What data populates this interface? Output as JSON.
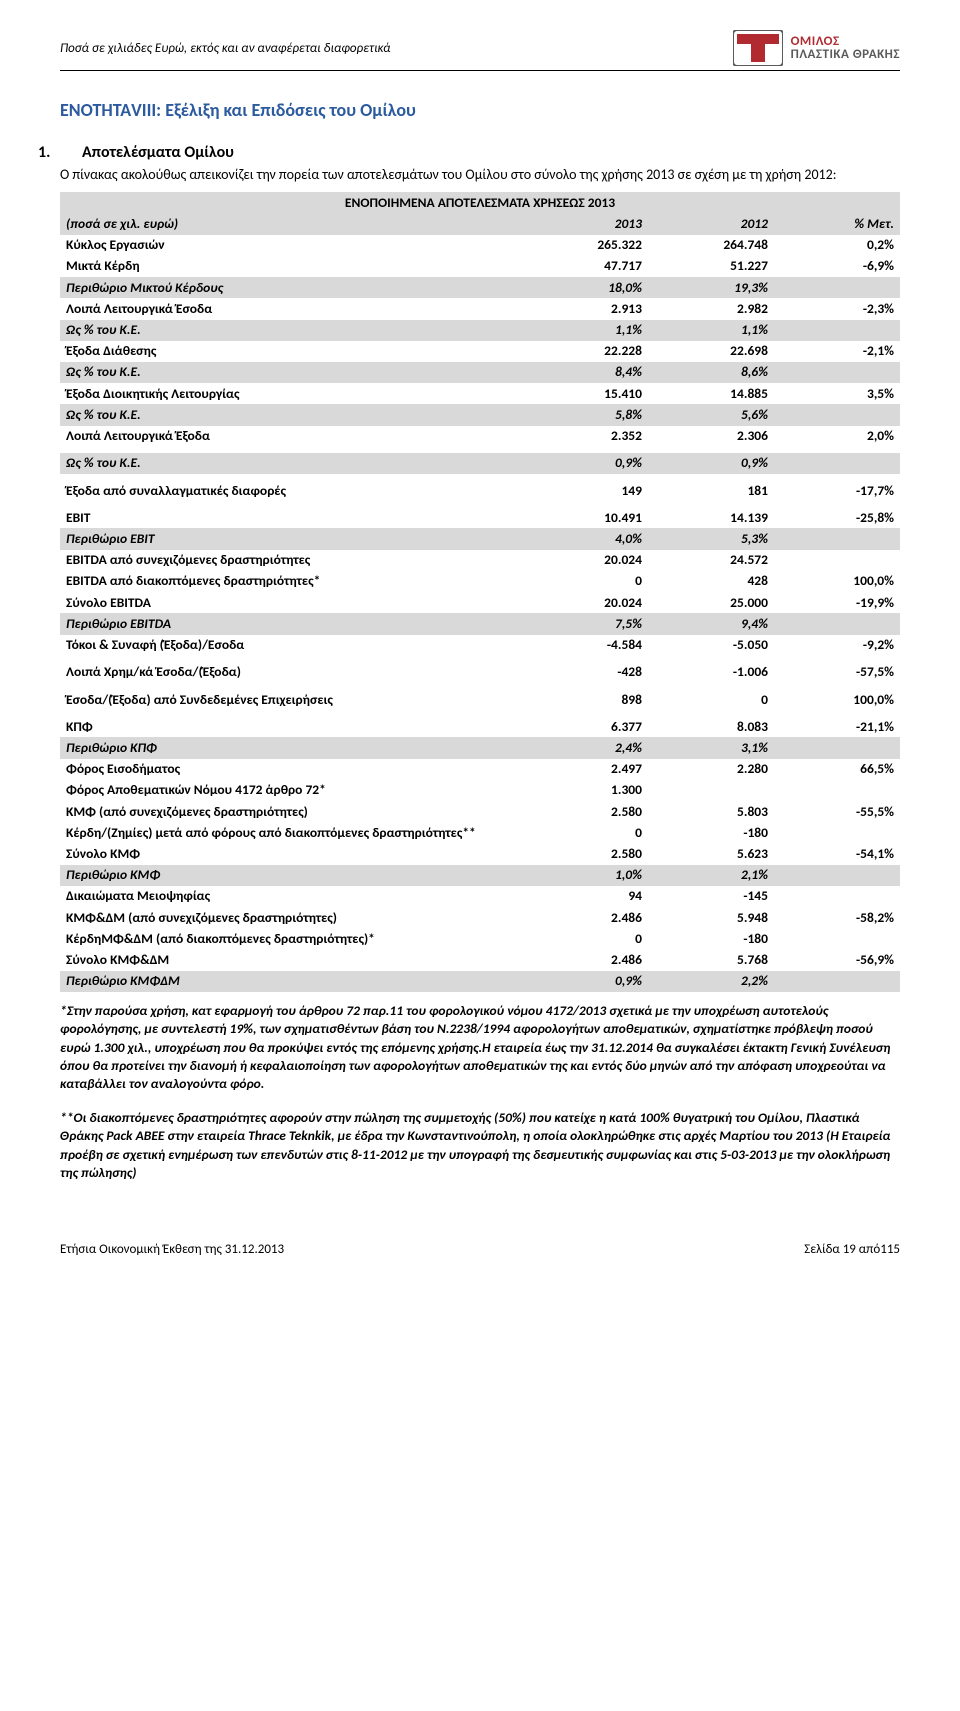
{
  "header": {
    "note": "Ποσά σε χιλιάδες Ευρώ, εκτός και αν αναφέρεται διαφορετικά",
    "logo_line1": "ΟΜΙΛΟΣ",
    "logo_line2": "ΠΛΑΣΤΙΚΑ ΘΡΑΚΗΣ"
  },
  "section_title": "ΕΝΟΤΗΤΑVIII: Εξέλιξη και Επιδόσεις του Ομίλου",
  "sub_num": "1.",
  "sub_title": "Αποτελέσματα Ομίλου",
  "intro": "Ο πίνακας ακολούθως απεικονίζει την πορεία των αποτελεσμάτων του Ομίλου στο σύνολο της χρήσης 2013 σε σχέση με τη χρήση 2012:",
  "table": {
    "title": "ΕΝΟΠΟΙΗΜΕΝΑ ΑΠΟΤΕΛΕΣΜΑΤΑ ΧΡΗΣΕΩΣ 2013",
    "head": {
      "label": "(ποσά σε χιλ. ευρώ)",
      "c1": "2013",
      "c2": "2012",
      "c3": "% Μετ."
    },
    "rows": [
      {
        "label": "Κύκλος Εργασιών",
        "c1": "265.322",
        "c2": "264.748",
        "c3": "0,2%",
        "variant": "bold"
      },
      {
        "label": "Μικτά Κέρδη",
        "c1": "47.717",
        "c2": "51.227",
        "c3": "-6,9%",
        "variant": "bold"
      },
      {
        "label": "Περιθώριο Μικτού Κέρδους",
        "c1": "18,0%",
        "c2": "19,3%",
        "c3": "",
        "variant": "band bolditalic"
      },
      {
        "label": "Λοιπά Λειτουργικά Έσοδα",
        "c1": "2.913",
        "c2": "2.982",
        "c3": "-2,3%",
        "variant": "bold"
      },
      {
        "label": "Ως % του Κ.Ε.",
        "c1": "1,1%",
        "c2": "1,1%",
        "c3": "",
        "variant": "band bolditalic"
      },
      {
        "label": "Έξοδα Διάθεσης",
        "c1": "22.228",
        "c2": "22.698",
        "c3": "-2,1%",
        "variant": "bold"
      },
      {
        "label": "Ως % του Κ.Ε.",
        "c1": "8,4%",
        "c2": "8,6%",
        "c3": "",
        "variant": "band bolditalic"
      },
      {
        "label": "Έξοδα Διοικητικής Λειτουργίας",
        "c1": "15.410",
        "c2": "14.885",
        "c3": "3,5%",
        "variant": "bold"
      },
      {
        "label": "Ως % του Κ.Ε.",
        "c1": "5,8%",
        "c2": "5,6%",
        "c3": "",
        "variant": "band bolditalic"
      },
      {
        "label": "Λοιπά Λειτουργικά Έξοδα",
        "c1": "2.352",
        "c2": "2.306",
        "c3": "2,0%",
        "variant": "bold"
      },
      {
        "variant": "spacer"
      },
      {
        "label": "Ως % του Κ.Ε.",
        "c1": "0,9%",
        "c2": "0,9%",
        "c3": "",
        "variant": "band bolditalic"
      },
      {
        "variant": "spacer"
      },
      {
        "label": "Έξοδα από συναλλαγματικές διαφορές",
        "c1": "149",
        "c2": "181",
        "c3": "-17,7%",
        "variant": "bold"
      },
      {
        "variant": "spacer"
      },
      {
        "label": "EBIT",
        "c1": "10.491",
        "c2": "14.139",
        "c3": "-25,8%",
        "variant": "bold"
      },
      {
        "label": "Περιθώριο ΕΒΙΤ",
        "c1": "4,0%",
        "c2": "5,3%",
        "c3": "",
        "variant": "band bolditalic"
      },
      {
        "label": "EBITDA από συνεχιζόμενες δραστηριότητες",
        "c1": "20.024",
        "c2": "24.572",
        "c3": "",
        "variant": "bold"
      },
      {
        "label": "EBITDA από διακοπτόμενες δραστηριότητες*",
        "c1": "0",
        "c2": "428",
        "c3": "100,0%",
        "variant": "bold"
      },
      {
        "label": "Σύνολο EBITDA",
        "c1": "20.024",
        "c2": "25.000",
        "c3": "-19,9%",
        "variant": "bold"
      },
      {
        "label": "Περιθώριο EBITDA",
        "c1": "7,5%",
        "c2": "9,4%",
        "c3": "",
        "variant": "band bolditalic"
      },
      {
        "label": "Τόκοι & Συναφή (Έξοδα)/Εσοδα",
        "c1": "-4.584",
        "c2": "-5.050",
        "c3": "-9,2%",
        "variant": "bold"
      },
      {
        "variant": "spacer"
      },
      {
        "label": "Λοιπά Χρημ/κά Έσοδα/(Έξοδα)",
        "c1": "-428",
        "c2": "-1.006",
        "c3": "-57,5%",
        "variant": "bold"
      },
      {
        "variant": "spacer"
      },
      {
        "label": "Έσοδα/(Έξοδα) από Συνδεδεμένες Επιχειρήσεις",
        "c1": "898",
        "c2": "0",
        "c3": "100,0%",
        "variant": "bold"
      },
      {
        "variant": "spacer"
      },
      {
        "label": "ΚΠΦ",
        "c1": "6.377",
        "c2": "8.083",
        "c3": "-21,1%",
        "variant": "bold"
      },
      {
        "label": "Περιθώριο ΚΠΦ",
        "c1": "2,4%",
        "c2": "3,1%",
        "c3": "",
        "variant": "band bolditalic"
      },
      {
        "label": "Φόρος Εισοδήματος",
        "c1": "2.497",
        "c2": "2.280",
        "c3": "66,5%",
        "variant": "bold"
      },
      {
        "label": "Φόρος Αποθεματικών Νόμου 4172 άρθρο 72*",
        "c1": "1.300",
        "c2": "",
        "c3": "",
        "variant": "bold"
      },
      {
        "label": "ΚΜΦ (από συνεχιζόμενες δραστηριότητες)",
        "c1": "2.580",
        "c2": "5.803",
        "c3": "-55,5%",
        "variant": "bold"
      },
      {
        "label": "Κέρδη/(Ζημίες) μετά από φόρους από διακοπτόμενες δραστηριότητες**",
        "c1": "0",
        "c2": "-180",
        "c3": "",
        "variant": "bold"
      },
      {
        "label": "Σύνολο ΚΜΦ",
        "c1": "2.580",
        "c2": "5.623",
        "c3": "-54,1%",
        "variant": "bold"
      },
      {
        "label": "Περιθώριο ΚΜΦ",
        "c1": "1,0%",
        "c2": "2,1%",
        "c3": "",
        "variant": "band bolditalic"
      },
      {
        "label": "Δικαιώματα Μειοψηφίας",
        "c1": "94",
        "c2": "-145",
        "c3": "",
        "variant": "bold"
      },
      {
        "label": "ΚΜΦ&ΔΜ (από συνεχιζόμενες δραστηριότητες)",
        "c1": "2.486",
        "c2": "5.948",
        "c3": "-58,2%",
        "variant": "bold"
      },
      {
        "label": "ΚέρδηΜΦ&ΔΜ (από διακοπτόμενες δραστηριότητες)*",
        "c1": "0",
        "c2": "-180",
        "c3": "",
        "variant": "bold"
      },
      {
        "label": "Σύνολο ΚΜΦ&ΔΜ",
        "c1": "2.486",
        "c2": "5.768",
        "c3": "-56,9%",
        "variant": "bold"
      },
      {
        "label": "Περιθώριο ΚΜΦΔΜ",
        "c1": "0,9%",
        "c2": "2,2%",
        "c3": "",
        "variant": "band bolditalic"
      }
    ]
  },
  "note1": "*Στην παρούσα χρήση, κατ εφαρμογή του άρθρου 72 παρ.11 του φορολογικού νόμου 4172/2013 σχετικά με την υποχρέωση αυτοτελούς φορολόγησης, με συντελεστή 19%, των σχηματισθέντων βάση του Ν.2238/1994 αφορολογήτων αποθεματικών, σχηματίστηκε πρόβλεψη ποσού ευρώ 1.300 χιλ., υποχρέωση που θα προκύψει εντός της επόμενης χρήσης.Η εταιρεία έως την 31.12.2014 θα συγκαλέσει έκτακτη Γενική Συνέλευση όπου θα προτείνει την διανομή ή κεφαλαιοποίηση των αφορολογήτων αποθεματικών της και εντός δύο μηνών από την απόφαση υποχρεούται  να καταβάλλει τον αναλογούντα φόρο.",
  "note2": "**Οι διακοπτόμενες δραστηριότητες αφορούν στην πώληση της συμμετοχής (50%) που κατείχε η κατά 100% θυγατρική του Ομίλου, Πλαστικά Θράκης Pack ΑΒΕΕ  στην εταιρεία Thrace Teknkik, με έδρα την Κωνσταντινούπολη, η οποία ολοκληρώθηκε στις αρχές Μαρτίου του 2013 (Η Εταιρεία προέβη σε σχετική ενημέρωση των επενδυτών στις 8-11-2012 με την υπογραφή της δεσμευτικής συμφωνίας και στις 5-03-2013 με την ολοκλήρωση της πώλησης)",
  "footer": {
    "left": "Ετήσια Οικονομική Έκθεση της 31.12.2013",
    "right": "Σελίδα 19 από115"
  },
  "colors": {
    "band": "#d9d9d9",
    "title": "#2b5a9e",
    "logo_red": "#b02a30",
    "logo_gray": "#5a5a5a"
  }
}
